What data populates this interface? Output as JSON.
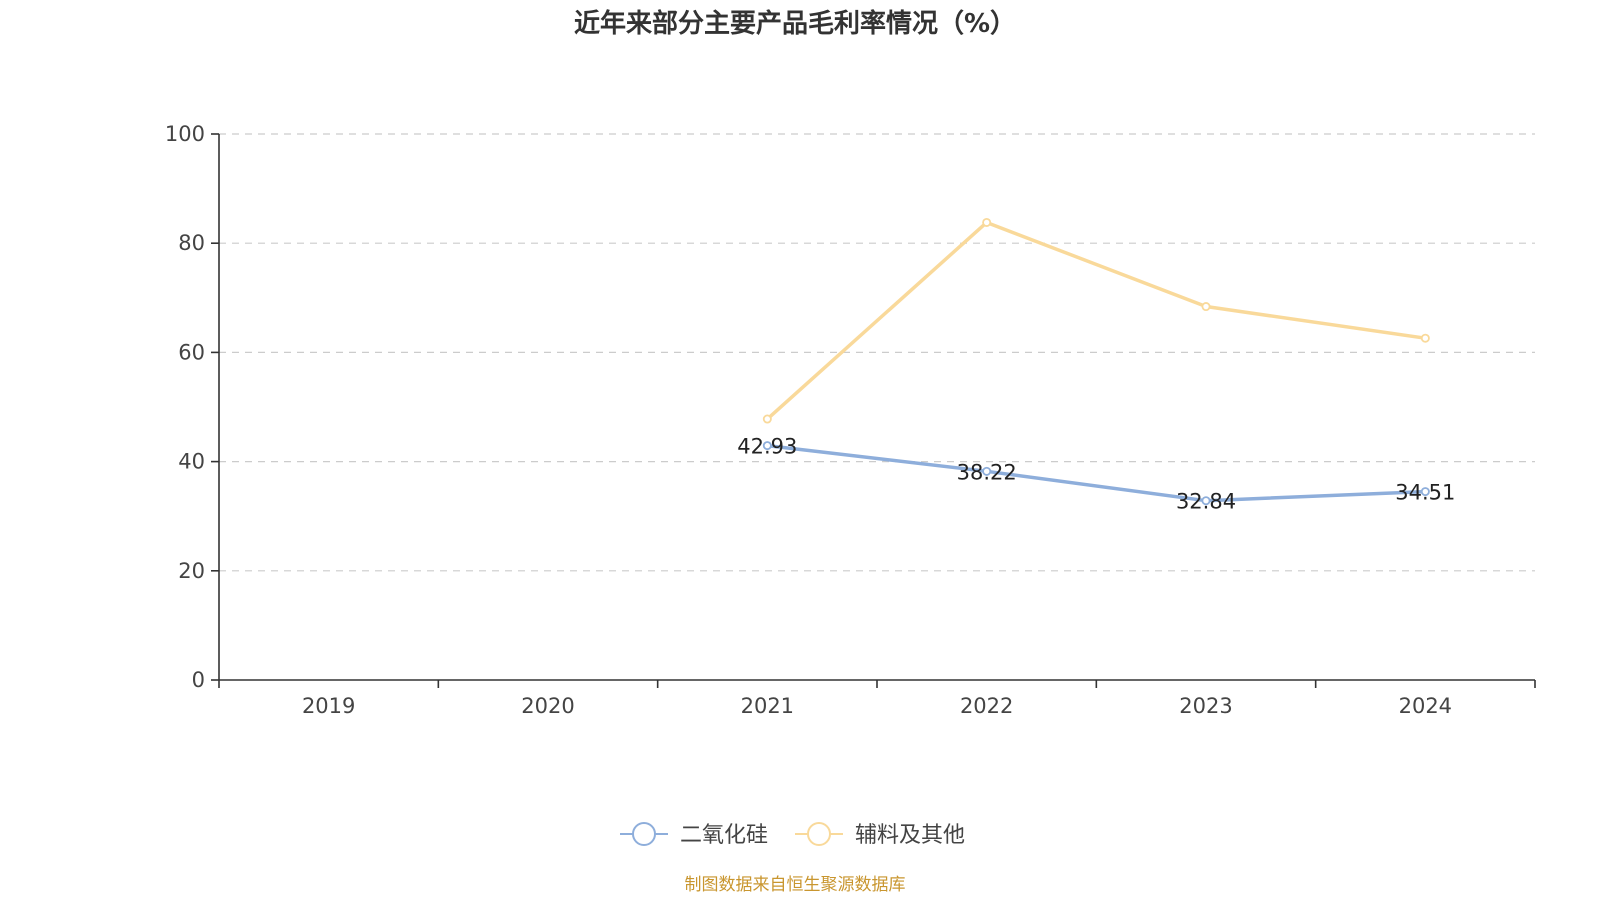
{
  "chart_data": {
    "type": "line",
    "title": "近年来部分主要产品毛利率情况（%）",
    "categories": [
      "2019",
      "2020",
      "2021",
      "2022",
      "2023",
      "2024"
    ],
    "ylim": [
      0,
      100
    ],
    "yticks": [
      0,
      20,
      40,
      60,
      80,
      100
    ],
    "grid": true,
    "legend_position": "bottom",
    "series": [
      {
        "name": "二氧化硅",
        "color": "#8eaedb",
        "values": [
          null,
          null,
          42.93,
          38.22,
          32.84,
          34.51
        ],
        "labels": [
          "",
          "",
          "42.93",
          "38.22",
          "32.84",
          "34.51"
        ]
      },
      {
        "name": "辅料及其他",
        "color": "#f9d99a",
        "values": [
          null,
          null,
          47.8,
          83.8,
          68.4,
          62.6
        ]
      }
    ]
  },
  "source": {
    "text": "制图数据来自恒生聚源数据库",
    "color": "#c9962f"
  }
}
